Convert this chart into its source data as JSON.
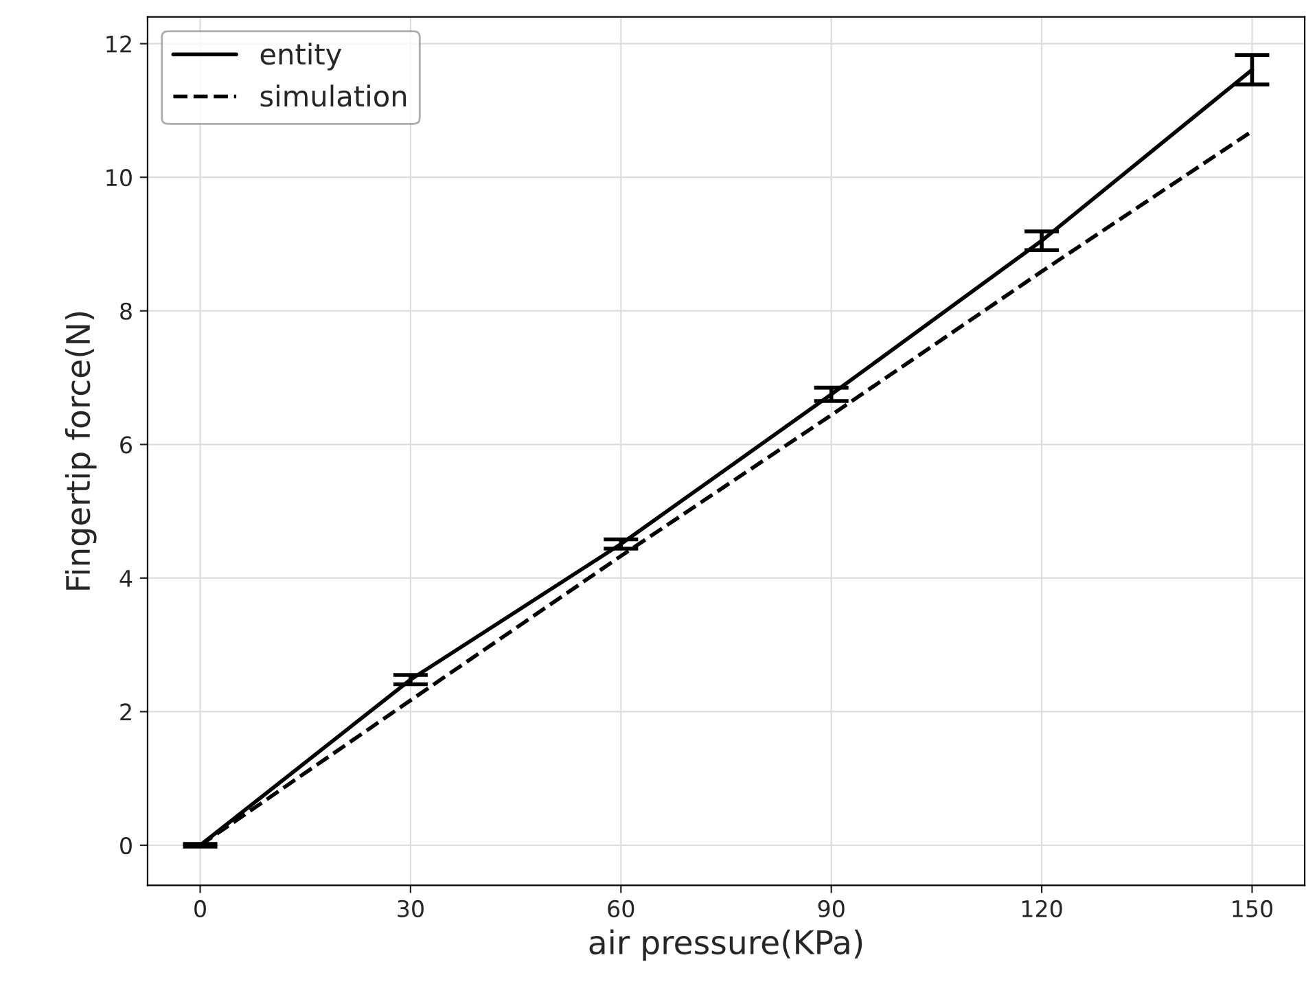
{
  "chart_data": {
    "type": "line",
    "xlabel": "air pressure(KPa)",
    "ylabel": "Fingertip force(N)",
    "x": [
      0,
      30,
      60,
      90,
      120,
      150
    ],
    "series": [
      {
        "name": "entity",
        "color": "#000000",
        "line_style": "solid",
        "values": [
          0,
          2.48,
          4.51,
          6.75,
          9.05,
          11.61
        ],
        "errors": [
          0.02,
          0.07,
          0.07,
          0.1,
          0.14,
          0.22
        ]
      },
      {
        "name": "simulation",
        "color": "#000000",
        "line_style": "dashed",
        "values": [
          0,
          2.17,
          4.33,
          6.44,
          8.59,
          10.69
        ]
      }
    ],
    "xlim": [
      -7.5,
      157.5
    ],
    "xticks": [
      0,
      30,
      60,
      90,
      120,
      150
    ],
    "ylim": [
      -0.6,
      12.4
    ],
    "yticks": [
      0,
      2,
      4,
      6,
      8,
      10,
      12
    ],
    "grid": true,
    "legend": "top left",
    "marker": "none"
  }
}
